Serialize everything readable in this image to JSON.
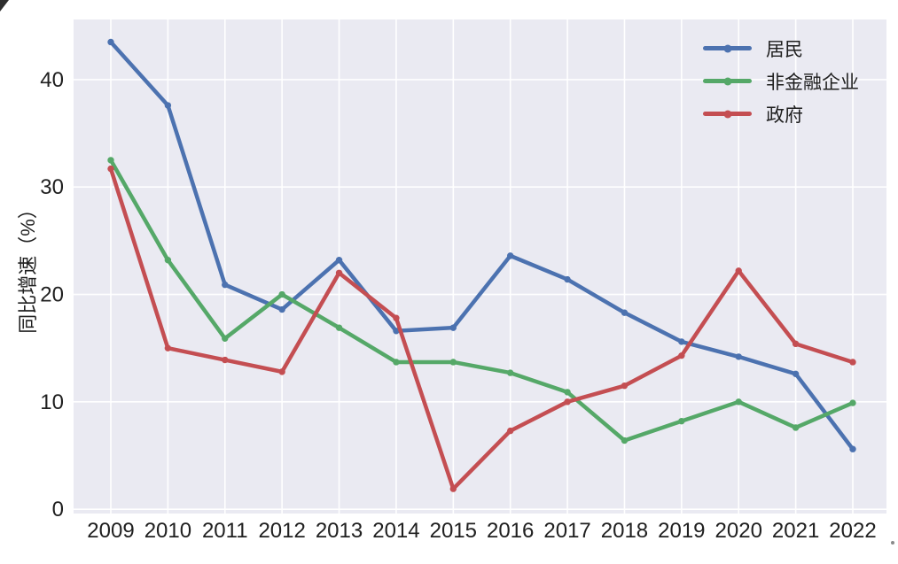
{
  "figure": {
    "plot_background": "#EAEAF2",
    "grid_color": "#FFFFFF",
    "text_color": "#202020"
  },
  "chart_data": {
    "type": "line",
    "title": "",
    "xlabel": "",
    "ylabel": "同比增速（%）",
    "x": [
      2009,
      2010,
      2011,
      2012,
      2013,
      2014,
      2015,
      2016,
      2017,
      2018,
      2019,
      2020,
      2021,
      2022
    ],
    "series": [
      {
        "name": "居民",
        "color": "#4C72B0",
        "values": [
          43.5,
          37.6,
          20.9,
          18.6,
          23.2,
          16.6,
          16.9,
          23.6,
          21.4,
          18.3,
          15.6,
          14.2,
          12.6,
          5.6
        ]
      },
      {
        "name": "非金融企业",
        "color": "#55A868",
        "values": [
          32.5,
          23.2,
          15.9,
          20.0,
          16.9,
          13.7,
          13.7,
          12.7,
          10.9,
          6.4,
          8.2,
          10.0,
          7.6,
          9.9
        ]
      },
      {
        "name": "政府",
        "color": "#C44E52",
        "values": [
          31.7,
          15.0,
          13.9,
          12.8,
          22.0,
          17.8,
          1.9,
          7.3,
          10.0,
          11.5,
          14.3,
          22.2,
          15.4,
          13.7
        ]
      }
    ],
    "yticks": [
      0,
      10,
      20,
      30,
      40
    ],
    "ylim": [
      -0.4,
      45.6
    ],
    "grid": true,
    "legend_position": "upper right",
    "marker": "circle"
  }
}
